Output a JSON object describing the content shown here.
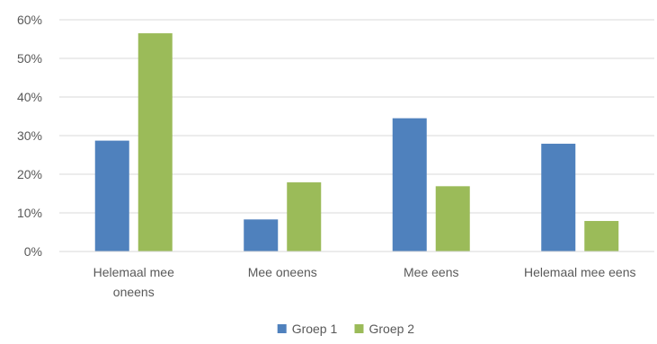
{
  "chart_data": {
    "type": "bar",
    "categories": [
      [
        "Helemaal mee",
        "oneens"
      ],
      [
        "Mee oneens"
      ],
      [
        "Mee eens"
      ],
      [
        "Helemaal mee eens"
      ]
    ],
    "series": [
      {
        "name": "Groep 1",
        "color": "#4F81BD",
        "values": [
          28.7,
          8.3,
          34.5,
          27.9
        ]
      },
      {
        "name": "Groep 2",
        "color": "#9BBB59",
        "values": [
          56.5,
          17.9,
          16.9,
          7.9
        ]
      }
    ],
    "y_ticks": [
      "0%",
      "10%",
      "20%",
      "30%",
      "40%",
      "50%",
      "60%"
    ],
    "ylim": [
      0,
      60
    ],
    "grid": true,
    "legend_position": "bottom"
  }
}
